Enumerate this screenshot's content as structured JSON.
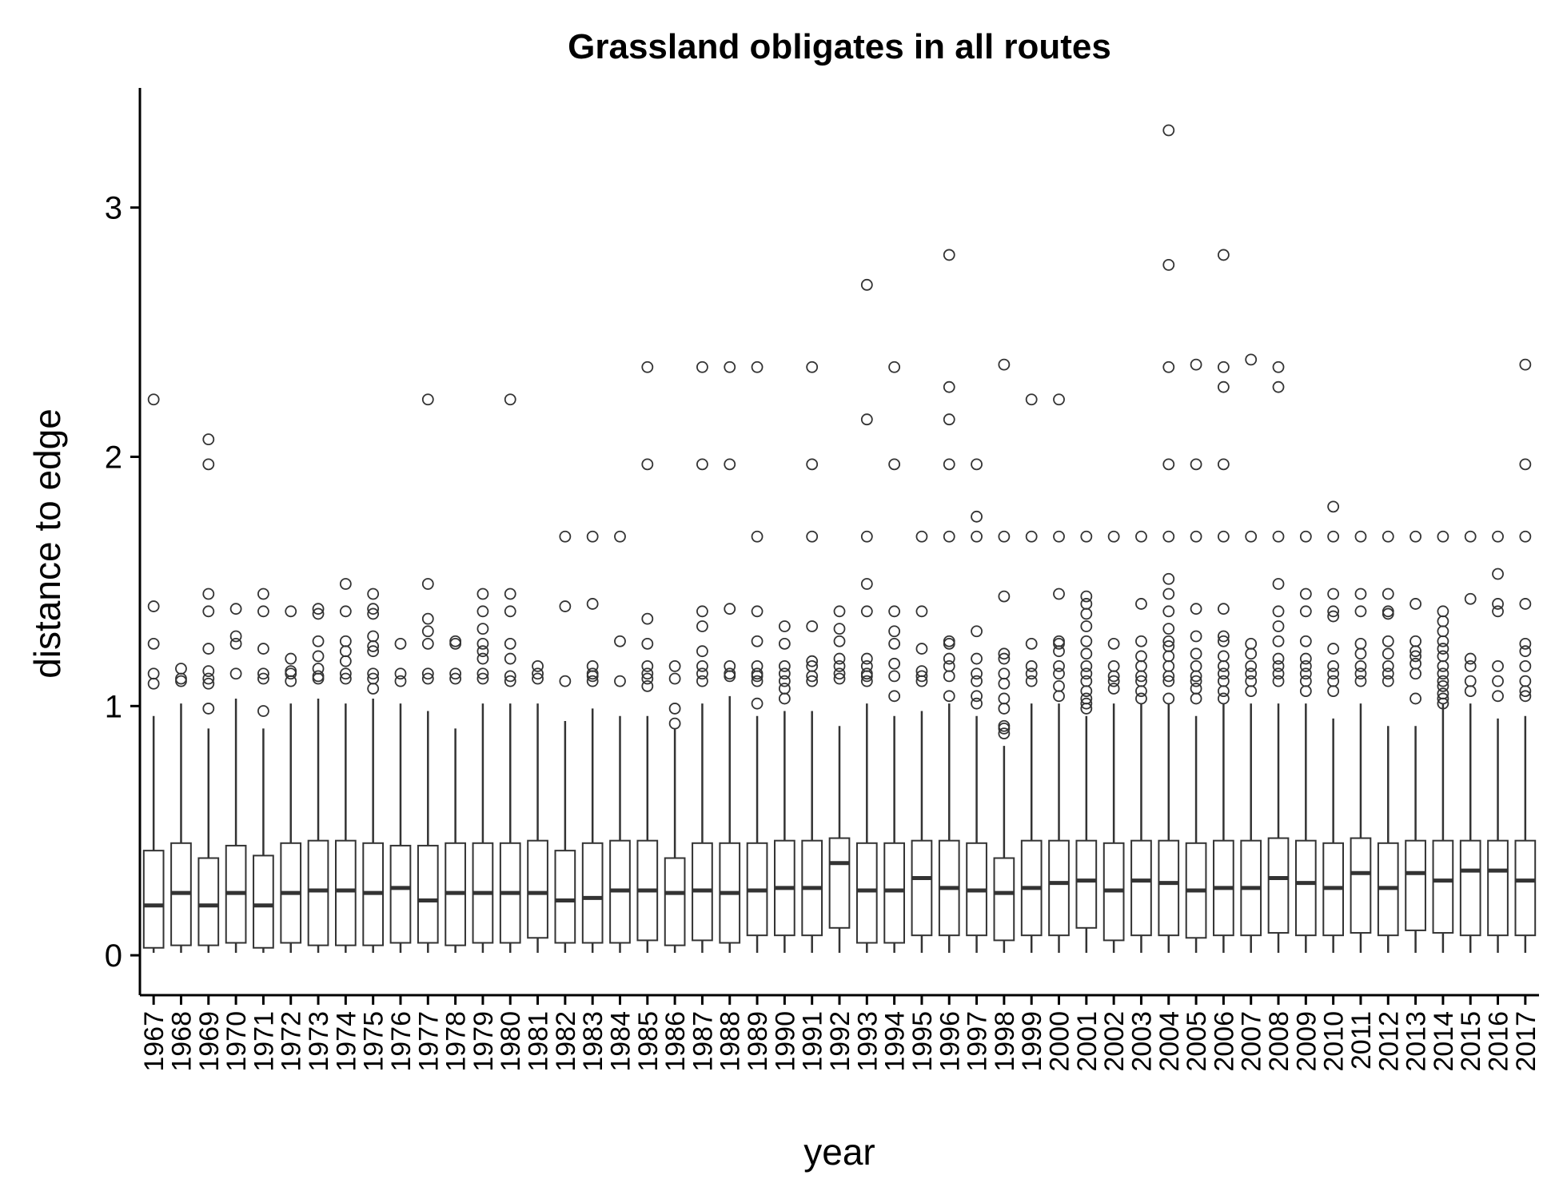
{
  "chart_data": {
    "type": "boxplot",
    "title": "Grassland obligates in all routes",
    "xlabel": "year",
    "ylabel": "distance to edge",
    "ylim": [
      -0.16,
      3.48
    ],
    "yticks": [
      0,
      1,
      2,
      3
    ],
    "grid": false,
    "legend": "none",
    "colors": {
      "box_fill": "#ffffff",
      "box_stroke": "#333333",
      "axis": "#000000"
    },
    "categories": [
      "1967",
      "1968",
      "1969",
      "1970",
      "1971",
      "1972",
      "1973",
      "1974",
      "1975",
      "1976",
      "1977",
      "1978",
      "1979",
      "1980",
      "1981",
      "1982",
      "1983",
      "1984",
      "1985",
      "1986",
      "1987",
      "1988",
      "1989",
      "1990",
      "1991",
      "1992",
      "1993",
      "1994",
      "1995",
      "1996",
      "1997",
      "1998",
      "1999",
      "2000",
      "2001",
      "2002",
      "2003",
      "2004",
      "2005",
      "2006",
      "2007",
      "2008",
      "2009",
      "2010",
      "2011",
      "2012",
      "2013",
      "2014",
      "2015",
      "2016",
      "2017"
    ],
    "boxes": [
      {
        "low": 0.01,
        "q1": 0.03,
        "median": 0.2,
        "q3": 0.42,
        "high": 0.96,
        "outliers": [
          1.09,
          1.13,
          1.25,
          1.4,
          2.23
        ]
      },
      {
        "low": 0.01,
        "q1": 0.04,
        "median": 0.25,
        "q3": 0.45,
        "high": 1.01,
        "outliers": [
          1.1,
          1.11,
          1.15
        ]
      },
      {
        "low": 0.01,
        "q1": 0.04,
        "median": 0.2,
        "q3": 0.39,
        "high": 0.91,
        "outliers": [
          0.99,
          1.09,
          1.11,
          1.14,
          1.23,
          1.38,
          1.45,
          1.97,
          2.07
        ]
      },
      {
        "low": 0.01,
        "q1": 0.05,
        "median": 0.25,
        "q3": 0.44,
        "high": 1.03,
        "outliers": [
          1.13,
          1.25,
          1.28,
          1.39
        ]
      },
      {
        "low": 0.01,
        "q1": 0.03,
        "median": 0.2,
        "q3": 0.4,
        "high": 0.91,
        "outliers": [
          0.98,
          1.11,
          1.13,
          1.23,
          1.38,
          1.45
        ]
      },
      {
        "low": 0.01,
        "q1": 0.05,
        "median": 0.25,
        "q3": 0.45,
        "high": 1.01,
        "outliers": [
          1.1,
          1.13,
          1.14,
          1.19,
          1.38
        ]
      },
      {
        "low": 0.01,
        "q1": 0.04,
        "median": 0.26,
        "q3": 0.46,
        "high": 1.03,
        "outliers": [
          1.11,
          1.12,
          1.15,
          1.2,
          1.26,
          1.37,
          1.39
        ]
      },
      {
        "low": 0.01,
        "q1": 0.04,
        "median": 0.26,
        "q3": 0.46,
        "high": 1.01,
        "outliers": [
          1.11,
          1.13,
          1.18,
          1.22,
          1.26,
          1.38,
          1.49
        ]
      },
      {
        "low": 0.01,
        "q1": 0.04,
        "median": 0.25,
        "q3": 0.45,
        "high": 1.03,
        "outliers": [
          1.07,
          1.11,
          1.13,
          1.22,
          1.24,
          1.28,
          1.37,
          1.39,
          1.45
        ]
      },
      {
        "low": 0.01,
        "q1": 0.05,
        "median": 0.27,
        "q3": 0.44,
        "high": 1.01,
        "outliers": [
          1.1,
          1.13,
          1.25
        ]
      },
      {
        "low": 0.01,
        "q1": 0.05,
        "median": 0.22,
        "q3": 0.44,
        "high": 0.98,
        "outliers": [
          1.11,
          1.13,
          1.25,
          1.3,
          1.35,
          1.49,
          2.23
        ]
      },
      {
        "low": 0.01,
        "q1": 0.04,
        "median": 0.25,
        "q3": 0.45,
        "high": 0.91,
        "outliers": [
          1.11,
          1.13,
          1.25,
          1.26
        ]
      },
      {
        "low": 0.01,
        "q1": 0.05,
        "median": 0.25,
        "q3": 0.45,
        "high": 1.01,
        "outliers": [
          1.11,
          1.13,
          1.19,
          1.22,
          1.25,
          1.31,
          1.38,
          1.45
        ]
      },
      {
        "low": 0.01,
        "q1": 0.05,
        "median": 0.25,
        "q3": 0.45,
        "high": 1.01,
        "outliers": [
          1.1,
          1.12,
          1.19,
          1.25,
          1.38,
          1.45,
          2.23
        ]
      },
      {
        "low": 0.01,
        "q1": 0.07,
        "median": 0.25,
        "q3": 0.46,
        "high": 1.01,
        "outliers": [
          1.11,
          1.13,
          1.16
        ]
      },
      {
        "low": 0.01,
        "q1": 0.05,
        "median": 0.22,
        "q3": 0.42,
        "high": 0.94,
        "outliers": [
          1.1,
          1.4,
          1.68
        ]
      },
      {
        "low": 0.01,
        "q1": 0.05,
        "median": 0.23,
        "q3": 0.45,
        "high": 0.99,
        "outliers": [
          1.1,
          1.12,
          1.13,
          1.16,
          1.41,
          1.68
        ]
      },
      {
        "low": 0.01,
        "q1": 0.05,
        "median": 0.26,
        "q3": 0.46,
        "high": 0.96,
        "outliers": [
          1.1,
          1.26,
          1.68
        ]
      },
      {
        "low": 0.01,
        "q1": 0.06,
        "median": 0.26,
        "q3": 0.46,
        "high": 0.96,
        "outliers": [
          1.08,
          1.11,
          1.13,
          1.16,
          1.25,
          1.35,
          1.97,
          2.36
        ]
      },
      {
        "low": 0.01,
        "q1": 0.04,
        "median": 0.25,
        "q3": 0.39,
        "high": 0.91,
        "outliers": [
          0.93,
          0.99,
          1.11,
          1.16
        ]
      },
      {
        "low": 0.01,
        "q1": 0.06,
        "median": 0.26,
        "q3": 0.45,
        "high": 1.01,
        "outliers": [
          1.1,
          1.13,
          1.16,
          1.22,
          1.32,
          1.38,
          1.97,
          2.36
        ]
      },
      {
        "low": 0.01,
        "q1": 0.05,
        "median": 0.25,
        "q3": 0.45,
        "high": 1.04,
        "outliers": [
          1.12,
          1.13,
          1.16,
          1.39,
          1.97,
          2.36
        ]
      },
      {
        "low": 0.01,
        "q1": 0.08,
        "median": 0.26,
        "q3": 0.45,
        "high": 0.96,
        "outliers": [
          1.01,
          1.1,
          1.12,
          1.13,
          1.16,
          1.26,
          1.38,
          1.68,
          2.36
        ]
      },
      {
        "low": 0.01,
        "q1": 0.08,
        "median": 0.27,
        "q3": 0.46,
        "high": 0.98,
        "outliers": [
          1.03,
          1.07,
          1.1,
          1.13,
          1.16,
          1.25,
          1.32
        ]
      },
      {
        "low": 0.01,
        "q1": 0.08,
        "median": 0.27,
        "q3": 0.46,
        "high": 0.98,
        "outliers": [
          1.1,
          1.12,
          1.16,
          1.18,
          1.32,
          1.68,
          1.97,
          2.36
        ]
      },
      {
        "low": 0.01,
        "q1": 0.11,
        "median": 0.37,
        "q3": 0.47,
        "high": 0.92,
        "outliers": [
          1.11,
          1.13,
          1.16,
          1.19,
          1.26,
          1.31,
          1.38
        ]
      },
      {
        "low": 0.01,
        "q1": 0.05,
        "median": 0.26,
        "q3": 0.45,
        "high": 1.01,
        "outliers": [
          1.1,
          1.12,
          1.13,
          1.16,
          1.19,
          1.38,
          1.49,
          1.68,
          2.15,
          2.69
        ]
      },
      {
        "low": 0.01,
        "q1": 0.05,
        "median": 0.26,
        "q3": 0.45,
        "high": 0.96,
        "outliers": [
          1.04,
          1.12,
          1.17,
          1.25,
          1.3,
          1.38,
          1.97,
          2.36
        ]
      },
      {
        "low": 0.01,
        "q1": 0.08,
        "median": 0.31,
        "q3": 0.46,
        "high": 0.98,
        "outliers": [
          1.1,
          1.12,
          1.14,
          1.23,
          1.38,
          1.68
        ]
      },
      {
        "low": 0.01,
        "q1": 0.08,
        "median": 0.27,
        "q3": 0.46,
        "high": 1.01,
        "outliers": [
          1.04,
          1.12,
          1.16,
          1.19,
          1.25,
          1.26,
          1.68,
          1.97,
          2.15,
          2.28,
          2.81
        ]
      },
      {
        "low": 0.01,
        "q1": 0.08,
        "median": 0.26,
        "q3": 0.45,
        "high": 0.96,
        "outliers": [
          1.01,
          1.04,
          1.1,
          1.13,
          1.19,
          1.3,
          1.68,
          1.76,
          1.97
        ]
      },
      {
        "low": 0.01,
        "q1": 0.06,
        "median": 0.25,
        "q3": 0.39,
        "high": 0.84,
        "outliers": [
          0.89,
          0.91,
          0.92,
          0.99,
          1.03,
          1.09,
          1.13,
          1.19,
          1.21,
          1.44,
          1.68,
          2.37
        ]
      },
      {
        "low": 0.01,
        "q1": 0.08,
        "median": 0.27,
        "q3": 0.46,
        "high": 1.01,
        "outliers": [
          1.1,
          1.13,
          1.16,
          1.25,
          1.68,
          2.23
        ]
      },
      {
        "low": 0.01,
        "q1": 0.08,
        "median": 0.29,
        "q3": 0.46,
        "high": 1.01,
        "outliers": [
          1.04,
          1.08,
          1.13,
          1.16,
          1.22,
          1.25,
          1.26,
          1.45,
          1.68,
          2.23
        ]
      },
      {
        "low": 0.01,
        "q1": 0.11,
        "median": 0.3,
        "q3": 0.46,
        "high": 0.96,
        "outliers": [
          0.99,
          1.01,
          1.03,
          1.06,
          1.1,
          1.13,
          1.16,
          1.21,
          1.26,
          1.32,
          1.37,
          1.41,
          1.44,
          1.68
        ]
      },
      {
        "low": 0.01,
        "q1": 0.06,
        "median": 0.26,
        "q3": 0.45,
        "high": 1.01,
        "outliers": [
          1.07,
          1.1,
          1.12,
          1.16,
          1.25,
          1.68
        ]
      },
      {
        "low": 0.01,
        "q1": 0.08,
        "median": 0.3,
        "q3": 0.46,
        "high": 1.01,
        "outliers": [
          1.03,
          1.06,
          1.1,
          1.12,
          1.16,
          1.2,
          1.26,
          1.41,
          1.68
        ]
      },
      {
        "low": 0.01,
        "q1": 0.08,
        "median": 0.29,
        "q3": 0.46,
        "high": 1.01,
        "outliers": [
          1.03,
          1.1,
          1.12,
          1.16,
          1.2,
          1.24,
          1.26,
          1.31,
          1.38,
          1.45,
          1.51,
          1.68,
          1.97,
          2.36,
          2.77,
          3.31
        ]
      },
      {
        "low": 0.01,
        "q1": 0.07,
        "median": 0.26,
        "q3": 0.45,
        "high": 0.96,
        "outliers": [
          1.03,
          1.07,
          1.1,
          1.12,
          1.16,
          1.21,
          1.28,
          1.39,
          1.68,
          1.97,
          2.37
        ]
      },
      {
        "low": 0.01,
        "q1": 0.08,
        "median": 0.27,
        "q3": 0.46,
        "high": 1.01,
        "outliers": [
          1.03,
          1.06,
          1.1,
          1.13,
          1.16,
          1.2,
          1.26,
          1.28,
          1.39,
          1.68,
          1.97,
          2.28,
          2.36,
          2.81
        ]
      },
      {
        "low": 0.01,
        "q1": 0.08,
        "median": 0.27,
        "q3": 0.46,
        "high": 1.01,
        "outliers": [
          1.06,
          1.1,
          1.13,
          1.16,
          1.21,
          1.25,
          1.68,
          2.39
        ]
      },
      {
        "low": 0.01,
        "q1": 0.09,
        "median": 0.31,
        "q3": 0.47,
        "high": 1.01,
        "outliers": [
          1.1,
          1.13,
          1.16,
          1.19,
          1.26,
          1.32,
          1.38,
          1.49,
          1.68,
          2.28,
          2.36
        ]
      },
      {
        "low": 0.01,
        "q1": 0.08,
        "median": 0.29,
        "q3": 0.46,
        "high": 1.01,
        "outliers": [
          1.06,
          1.1,
          1.13,
          1.16,
          1.19,
          1.26,
          1.38,
          1.45,
          1.68
        ]
      },
      {
        "low": 0.01,
        "q1": 0.08,
        "median": 0.27,
        "q3": 0.45,
        "high": 0.95,
        "outliers": [
          1.06,
          1.1,
          1.13,
          1.16,
          1.23,
          1.36,
          1.38,
          1.45,
          1.68,
          1.8
        ]
      },
      {
        "low": 0.01,
        "q1": 0.09,
        "median": 0.33,
        "q3": 0.47,
        "high": 1.01,
        "outliers": [
          1.1,
          1.13,
          1.16,
          1.21,
          1.25,
          1.38,
          1.45,
          1.68
        ]
      },
      {
        "low": 0.01,
        "q1": 0.08,
        "median": 0.27,
        "q3": 0.45,
        "high": 0.92,
        "outliers": [
          1.1,
          1.13,
          1.16,
          1.21,
          1.26,
          1.37,
          1.38,
          1.45,
          1.68
        ]
      },
      {
        "low": 0.01,
        "q1": 0.1,
        "median": 0.33,
        "q3": 0.46,
        "high": 0.92,
        "outliers": [
          1.03,
          1.13,
          1.17,
          1.2,
          1.22,
          1.26,
          1.41,
          1.68
        ]
      },
      {
        "low": 0.01,
        "q1": 0.09,
        "median": 0.3,
        "q3": 0.46,
        "high": 1.01,
        "outliers": [
          1.01,
          1.03,
          1.05,
          1.08,
          1.1,
          1.13,
          1.16,
          1.2,
          1.23,
          1.26,
          1.3,
          1.34,
          1.38,
          1.68
        ]
      },
      {
        "low": 0.01,
        "q1": 0.08,
        "median": 0.34,
        "q3": 0.46,
        "high": 1.01,
        "outliers": [
          1.06,
          1.1,
          1.16,
          1.19,
          1.43,
          1.68
        ]
      },
      {
        "low": 0.01,
        "q1": 0.08,
        "median": 0.34,
        "q3": 0.46,
        "high": 0.95,
        "outliers": [
          1.04,
          1.1,
          1.16,
          1.38,
          1.41,
          1.53,
          1.68
        ]
      },
      {
        "low": 0.01,
        "q1": 0.08,
        "median": 0.3,
        "q3": 0.46,
        "high": 0.96,
        "outliers": [
          1.04,
          1.06,
          1.1,
          1.16,
          1.22,
          1.25,
          1.41,
          1.68,
          1.97,
          2.37
        ]
      }
    ]
  }
}
